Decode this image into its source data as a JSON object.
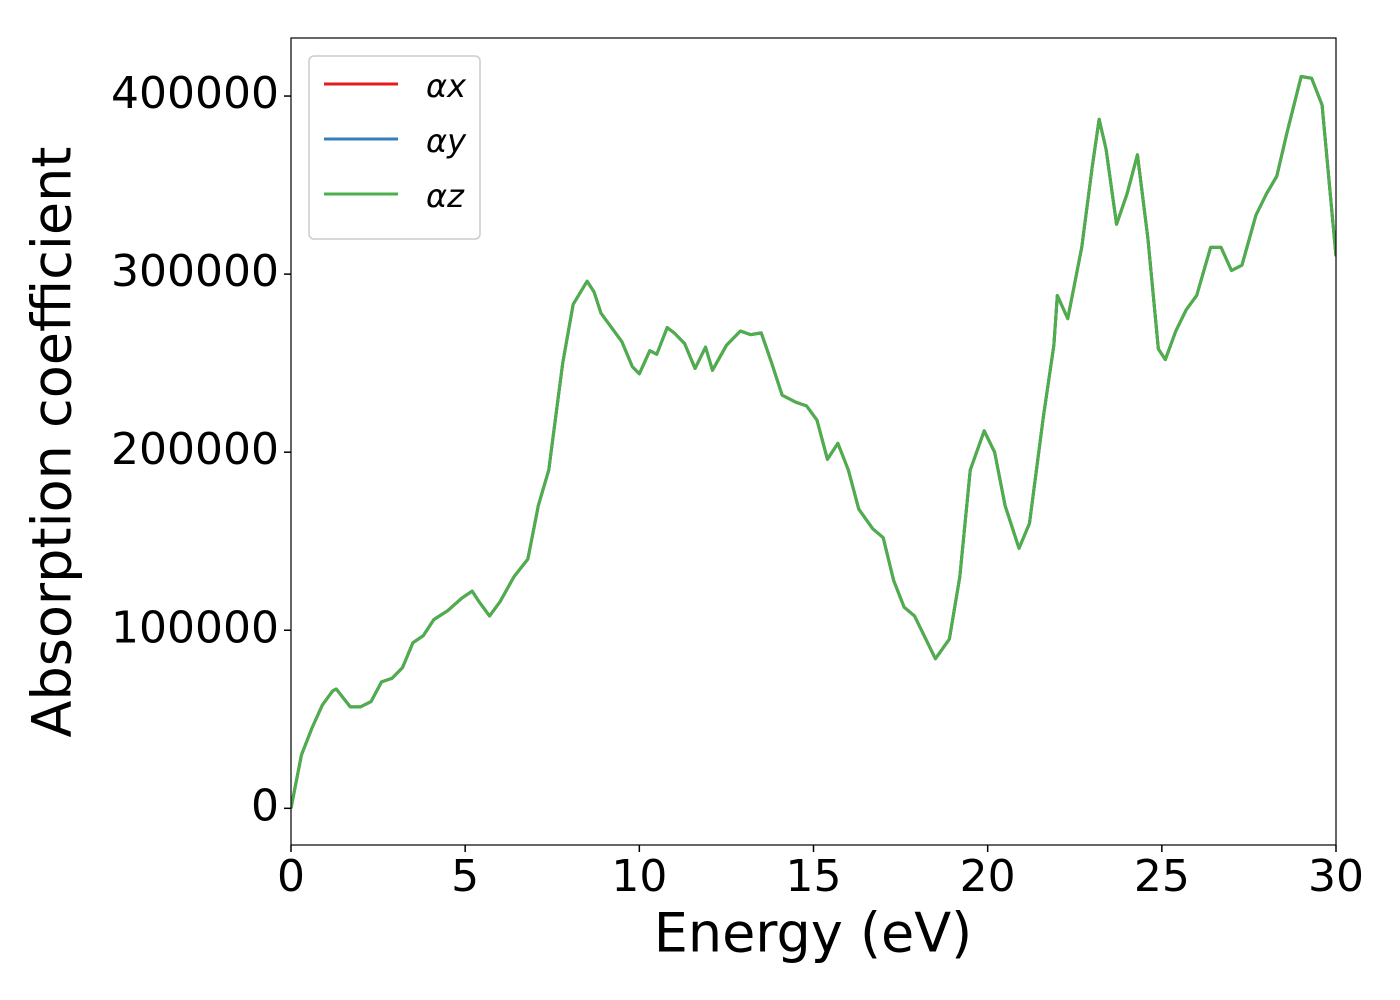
{
  "chart_data": {
    "type": "line",
    "xlabel": "Energy (eV)",
    "ylabel": "Absorption coefficient",
    "x": [
      0,
      0.1,
      0.3,
      0.6,
      0.9,
      1.2,
      1.3,
      1.5,
      1.7,
      2.0,
      2.3,
      2.6,
      2.9,
      3.2,
      3.5,
      3.8,
      4.1,
      4.5,
      4.9,
      5.2,
      5.4,
      5.7,
      6.0,
      6.4,
      6.8,
      7.1,
      7.4,
      7.8,
      8.1,
      8.5,
      8.7,
      8.9,
      9.2,
      9.5,
      9.8,
      10.0,
      10.3,
      10.5,
      10.8,
      11.0,
      11.3,
      11.6,
      11.9,
      12.1,
      12.5,
      12.9,
      13.2,
      13.5,
      13.8,
      14.1,
      14.5,
      14.8,
      15.1,
      15.4,
      15.7,
      16.0,
      16.3,
      16.7,
      17.0,
      17.3,
      17.6,
      17.9,
      18.2,
      18.5,
      18.9,
      19.2,
      19.5,
      19.9,
      20.2,
      20.5,
      20.9,
      21.2,
      21.6,
      21.9,
      22.0,
      22.3,
      22.7,
      23.0,
      23.2,
      23.4,
      23.7,
      24.0,
      24.3,
      24.6,
      24.9,
      25.1,
      25.4,
      25.7,
      26.0,
      26.4,
      26.7,
      27.0,
      27.3,
      27.7,
      28.0,
      28.3,
      28.6,
      29.0,
      29.3,
      29.6,
      30.0
    ],
    "series": [
      {
        "name": "αx",
        "color": "#e41a1c",
        "values": [
          0,
          10000,
          30000,
          45000,
          58000,
          66000,
          67000,
          62000,
          57000,
          57000,
          60000,
          71000,
          73000,
          79000,
          93000,
          97000,
          106000,
          111000,
          118000,
          122000,
          116000,
          108000,
          116000,
          130000,
          140000,
          170000,
          190000,
          250000,
          283000,
          296000,
          290000,
          278000,
          270000,
          262000,
          248000,
          244000,
          257000,
          255000,
          270000,
          267000,
          261000,
          247000,
          259000,
          246000,
          260000,
          268000,
          266000,
          267000,
          250000,
          232000,
          228000,
          226000,
          218000,
          196000,
          205000,
          190000,
          168000,
          157000,
          152000,
          128000,
          113000,
          108000,
          96000,
          84000,
          95000,
          130000,
          190000,
          212000,
          200000,
          170000,
          146000,
          160000,
          220000,
          260000,
          288000,
          275000,
          315000,
          360000,
          387000,
          370000,
          328000,
          345000,
          367000,
          320000,
          258000,
          252000,
          268000,
          280000,
          288000,
          315000,
          315000,
          302000,
          305000,
          333000,
          345000,
          355000,
          380000,
          411000,
          410000,
          395000,
          310000
        ]
      },
      {
        "name": "αy",
        "color": "#377eb8",
        "values": [
          0,
          10000,
          30000,
          45000,
          58000,
          66000,
          67000,
          62000,
          57000,
          57000,
          60000,
          71000,
          73000,
          79000,
          93000,
          97000,
          106000,
          111000,
          118000,
          122000,
          116000,
          108000,
          116000,
          130000,
          140000,
          170000,
          190000,
          250000,
          283000,
          296000,
          290000,
          278000,
          270000,
          262000,
          248000,
          244000,
          257000,
          255000,
          270000,
          267000,
          261000,
          247000,
          259000,
          246000,
          260000,
          268000,
          266000,
          267000,
          250000,
          232000,
          228000,
          226000,
          218000,
          196000,
          205000,
          190000,
          168000,
          157000,
          152000,
          128000,
          113000,
          108000,
          96000,
          84000,
          95000,
          130000,
          190000,
          212000,
          200000,
          170000,
          146000,
          160000,
          220000,
          260000,
          288000,
          275000,
          315000,
          360000,
          387000,
          370000,
          328000,
          345000,
          367000,
          320000,
          258000,
          252000,
          268000,
          280000,
          288000,
          315000,
          315000,
          302000,
          305000,
          333000,
          345000,
          355000,
          380000,
          411000,
          410000,
          395000,
          310000
        ]
      },
      {
        "name": "αz",
        "color": "#4daf4a",
        "values": [
          0,
          10000,
          30000,
          45000,
          58000,
          66000,
          67000,
          62000,
          57000,
          57000,
          60000,
          71000,
          73000,
          79000,
          93000,
          97000,
          106000,
          111000,
          118000,
          122000,
          116000,
          108000,
          116000,
          130000,
          140000,
          170000,
          190000,
          250000,
          283000,
          296000,
          290000,
          278000,
          270000,
          262000,
          248000,
          244000,
          257000,
          255000,
          270000,
          267000,
          261000,
          247000,
          259000,
          246000,
          260000,
          268000,
          266000,
          267000,
          250000,
          232000,
          228000,
          226000,
          218000,
          196000,
          205000,
          190000,
          168000,
          157000,
          152000,
          128000,
          113000,
          108000,
          96000,
          84000,
          95000,
          130000,
          190000,
          212000,
          200000,
          170000,
          146000,
          160000,
          220000,
          260000,
          288000,
          275000,
          315000,
          360000,
          387000,
          370000,
          328000,
          345000,
          367000,
          320000,
          258000,
          252000,
          268000,
          280000,
          288000,
          315000,
          315000,
          302000,
          305000,
          333000,
          345000,
          355000,
          380000,
          411000,
          410000,
          395000,
          310000
        ]
      }
    ],
    "xlim": [
      0,
      30
    ],
    "xticks": [
      0,
      5,
      10,
      15,
      20,
      25,
      30
    ],
    "ylim": [
      -20600,
      432600
    ],
    "yticks": [
      0,
      100000,
      200000,
      300000,
      400000
    ],
    "grid": false,
    "legend": "upper left"
  }
}
